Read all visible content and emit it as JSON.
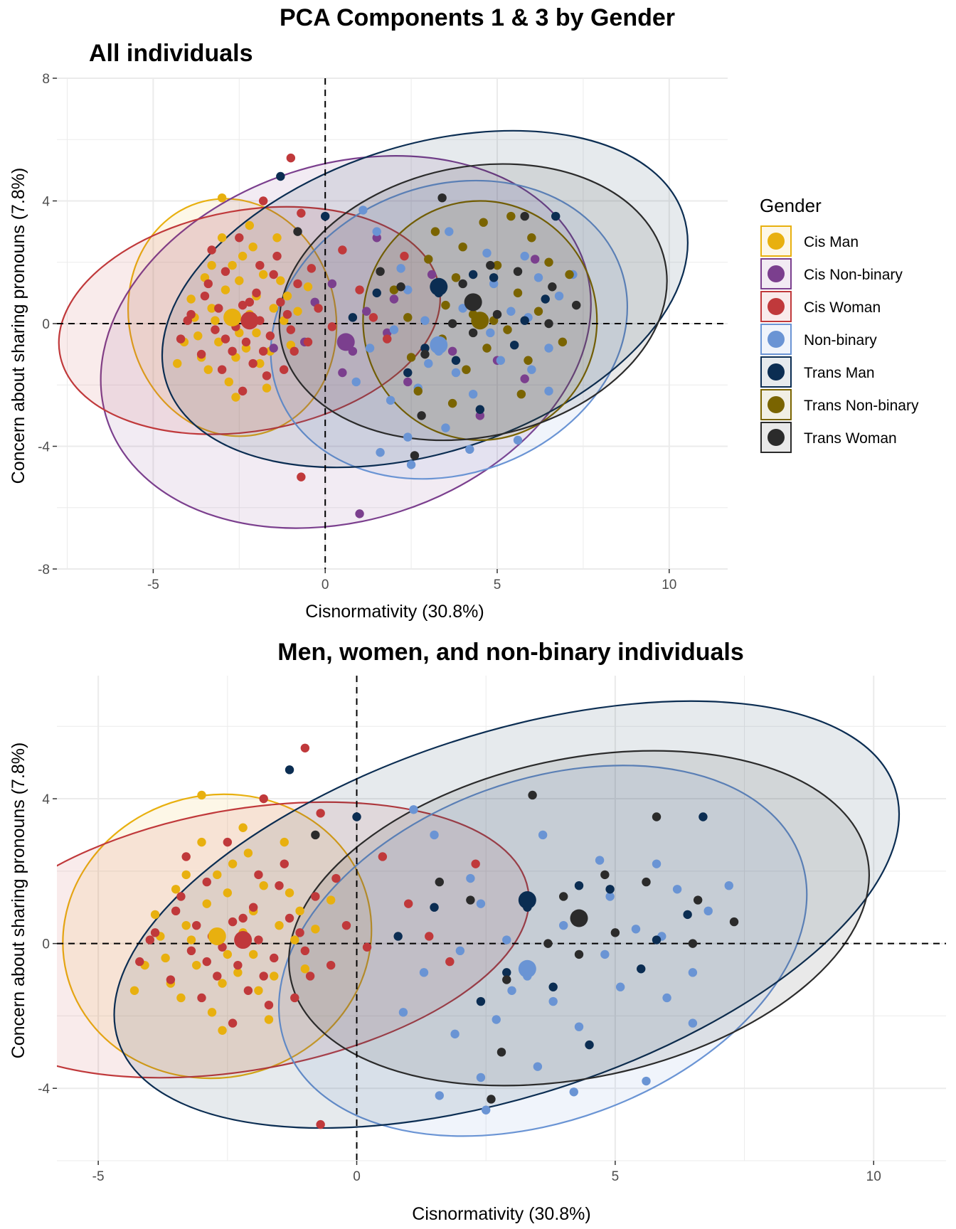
{
  "figure_title": "PCA Components 1 & 3 by Gender",
  "legend": {
    "title": "Gender",
    "placement": "right",
    "entries": [
      {
        "name": "Cis Man",
        "color": "#E8B00F"
      },
      {
        "name": "Cis Non-binary",
        "color": "#7B3F8E"
      },
      {
        "name": "Cis Woman",
        "color": "#C0393B"
      },
      {
        "name": "Non-binary",
        "color": "#6A94D4"
      },
      {
        "name": "Trans Man",
        "color": "#0B2D52"
      },
      {
        "name": "Trans Non-binary",
        "color": "#7A6400"
      },
      {
        "name": "Trans Woman",
        "color": "#2B2B2B"
      }
    ]
  },
  "chart_data": [
    {
      "type": "scatter",
      "title": "All individuals",
      "xlabel": "Cisnormativity (30.8%)",
      "ylabel": "Concern about sharing pronouns (7.8%)",
      "xlim": [
        -7.8,
        11.7
      ],
      "ylim": [
        -8,
        8
      ],
      "x_ticks": [
        -5,
        0,
        5,
        10
      ],
      "y_ticks": [
        -8,
        -4,
        0,
        4,
        8
      ],
      "grid": true,
      "reference_lines": {
        "x": 0,
        "y": 0,
        "style": "dashed"
      },
      "series": [
        {
          "name": "Cis Man",
          "color": "#E8B00F",
          "centroid": [
            -2.7,
            0.2
          ],
          "ellipse": {
            "center": [
              -2.7,
              0.2
            ],
            "rx": 3.0,
            "ry": 3.9,
            "angle": -14
          },
          "points": [
            [
              -3.5,
              1.5
            ],
            [
              -3.3,
              0.5
            ],
            [
              -3.1,
              -0.6
            ],
            [
              -2.9,
              1.1
            ],
            [
              -2.6,
              -1.1
            ],
            [
              -2.4,
              2.2
            ],
            [
              -2.2,
              0.3
            ],
            [
              -2.0,
              -0.3
            ],
            [
              -1.8,
              1.6
            ],
            [
              -1.6,
              -0.9
            ],
            [
              -1.4,
              2.8
            ],
            [
              -1.2,
              0.1
            ],
            [
              -3.7,
              -0.4
            ],
            [
              -3.4,
              -1.5
            ],
            [
              -3.0,
              2.8
            ],
            [
              -2.8,
              -1.9
            ],
            [
              -2.5,
              1.4
            ],
            [
              -2.3,
              -0.8
            ],
            [
              -2.1,
              2.5
            ],
            [
              -1.9,
              -1.3
            ],
            [
              -4.1,
              -0.6
            ],
            [
              -3.9,
              0.8
            ],
            [
              -3.6,
              -1.1
            ],
            [
              -3.2,
              0.1
            ],
            [
              -2.7,
              1.9
            ],
            [
              -2.0,
              0.9
            ],
            [
              -1.5,
              0.5
            ],
            [
              -1.0,
              -0.7
            ],
            [
              -0.5,
              1.2
            ],
            [
              -3.0,
              4.1
            ],
            [
              -2.6,
              -2.4
            ],
            [
              -1.7,
              -2.1
            ],
            [
              -0.8,
              0.4
            ],
            [
              -3.3,
              1.9
            ],
            [
              -2.2,
              3.2
            ],
            [
              -1.3,
              1.4
            ],
            [
              -4.3,
              -1.3
            ],
            [
              -3.8,
              0.2
            ],
            [
              -2.5,
              -0.3
            ],
            [
              -1.1,
              0.9
            ]
          ]
        },
        {
          "name": "Cis Non-binary",
          "color": "#7B3F8E",
          "centroid": [
            0.6,
            -0.6
          ],
          "ellipse": {
            "center": [
              0.6,
              -0.6
            ],
            "rx": 7.3,
            "ry": 5.8,
            "angle": -18
          },
          "points": [
            [
              1.0,
              -6.2
            ],
            [
              1.5,
              2.8
            ],
            [
              0.8,
              -0.9
            ],
            [
              -0.3,
              0.7
            ],
            [
              2.4,
              -1.9
            ],
            [
              0.2,
              1.3
            ],
            [
              1.8,
              -0.3
            ],
            [
              -0.6,
              -0.6
            ],
            [
              4.5,
              -3.0
            ],
            [
              3.1,
              1.6
            ],
            [
              5.0,
              -1.2
            ],
            [
              1.2,
              0.4
            ],
            [
              -1.5,
              -0.8
            ],
            [
              2.0,
              0.8
            ],
            [
              0.5,
              -1.6
            ],
            [
              5.8,
              -1.8
            ],
            [
              6.1,
              2.1
            ],
            [
              3.7,
              -0.9
            ]
          ]
        },
        {
          "name": "Cis Woman",
          "color": "#C0393B",
          "centroid": [
            -2.2,
            0.1
          ],
          "ellipse": {
            "center": [
              -2.2,
              0.1
            ],
            "rx": 5.6,
            "ry": 3.6,
            "angle": -10
          },
          "points": [
            [
              -1.0,
              5.4
            ],
            [
              -0.7,
              -5.0
            ],
            [
              -0.7,
              3.6
            ],
            [
              -1.8,
              4.0
            ],
            [
              -3.5,
              0.9
            ],
            [
              -3.2,
              -0.2
            ],
            [
              -2.9,
              1.7
            ],
            [
              -2.7,
              -0.9
            ],
            [
              -2.4,
              0.6
            ],
            [
              -2.1,
              -1.3
            ],
            [
              -1.9,
              1.9
            ],
            [
              -1.6,
              -0.4
            ],
            [
              -1.3,
              0.7
            ],
            [
              -1.0,
              -0.2
            ],
            [
              -0.8,
              1.3
            ],
            [
              -0.5,
              -0.6
            ],
            [
              -0.2,
              0.5
            ],
            [
              0.2,
              -0.1
            ],
            [
              0.5,
              2.4
            ],
            [
              1.0,
              1.1
            ],
            [
              1.4,
              0.2
            ],
            [
              1.8,
              -0.5
            ],
            [
              2.3,
              2.2
            ],
            [
              -4.2,
              -0.5
            ],
            [
              -3.9,
              0.3
            ],
            [
              -3.6,
              -1.0
            ],
            [
              -3.3,
              2.4
            ],
            [
              -3.0,
              -1.5
            ],
            [
              -2.8,
              0.2
            ],
            [
              -2.5,
              2.8
            ],
            [
              -2.3,
              -0.6
            ],
            [
              -2.0,
              1.0
            ],
            [
              -1.7,
              -1.7
            ],
            [
              -1.4,
              2.2
            ],
            [
              -1.1,
              0.3
            ],
            [
              -0.4,
              1.8
            ],
            [
              -3.1,
              0.5
            ],
            [
              -2.6,
              -0.1
            ],
            [
              -2.2,
              0.7
            ],
            [
              -1.8,
              -0.9
            ],
            [
              -1.5,
              1.6
            ],
            [
              -2.9,
              -0.5
            ],
            [
              -3.4,
              1.3
            ],
            [
              -4.0,
              0.1
            ],
            [
              -0.9,
              -0.9
            ],
            [
              -1.2,
              -1.5
            ],
            [
              -2.4,
              -2.2
            ],
            [
              -1.9,
              0.1
            ]
          ]
        },
        {
          "name": "Non-binary",
          "color": "#6A94D4",
          "centroid": [
            3.3,
            -0.7
          ],
          "ellipse": {
            "center": [
              3.6,
              -0.2
            ],
            "rx": 5.3,
            "ry": 4.7,
            "angle": -20
          },
          "points": [
            [
              1.1,
              3.7
            ],
            [
              1.5,
              3.0
            ],
            [
              2.4,
              -3.7
            ],
            [
              3.6,
              3.0
            ],
            [
              4.7,
              2.3
            ],
            [
              5.8,
              2.2
            ],
            [
              6.2,
              1.5
            ],
            [
              7.2,
              1.6
            ],
            [
              6.5,
              -0.8
            ],
            [
              5.1,
              -1.2
            ],
            [
              4.2,
              -4.1
            ],
            [
              3.5,
              -3.4
            ],
            [
              2.5,
              -4.6
            ],
            [
              1.6,
              -4.2
            ],
            [
              0.9,
              -1.9
            ],
            [
              2.0,
              -0.2
            ],
            [
              2.9,
              0.1
            ],
            [
              3.3,
              -0.9
            ],
            [
              4.0,
              0.5
            ],
            [
              4.8,
              -0.3
            ],
            [
              5.4,
              0.4
            ],
            [
              6.0,
              -1.5
            ],
            [
              6.8,
              0.9
            ],
            [
              3.8,
              -1.6
            ],
            [
              2.4,
              1.1
            ],
            [
              1.9,
              -2.5
            ],
            [
              5.6,
              -3.8
            ],
            [
              4.3,
              -2.3
            ],
            [
              3.0,
              -1.3
            ],
            [
              2.2,
              1.8
            ],
            [
              6.5,
              -2.2
            ],
            [
              4.9,
              1.3
            ],
            [
              1.3,
              -0.8
            ],
            [
              2.7,
              -2.1
            ],
            [
              5.9,
              0.2
            ]
          ]
        },
        {
          "name": "Trans Man",
          "color": "#0B2D52",
          "centroid": [
            3.3,
            1.2
          ],
          "ellipse": {
            "center": [
              2.9,
              0.8
            ],
            "rx": 7.9,
            "ry": 5.0,
            "angle": -18
          },
          "points": [
            [
              -1.3,
              4.8
            ],
            [
              0.0,
              3.5
            ],
            [
              3.3,
              1.0
            ],
            [
              1.5,
              1.0
            ],
            [
              4.5,
              -2.8
            ],
            [
              6.7,
              3.5
            ],
            [
              4.9,
              1.5
            ],
            [
              6.4,
              0.8
            ],
            [
              2.9,
              -0.8
            ],
            [
              3.8,
              -1.2
            ],
            [
              4.3,
              1.6
            ],
            [
              5.8,
              0.1
            ],
            [
              2.4,
              -1.6
            ],
            [
              0.8,
              0.2
            ],
            [
              5.5,
              -0.7
            ]
          ]
        },
        {
          "name": "Trans Non-binary",
          "color": "#7A6400",
          "centroid": [
            4.5,
            0.1
          ],
          "ellipse": {
            "center": [
              4.5,
              0.1
            ],
            "rx": 3.4,
            "ry": 3.9,
            "angle": 0
          },
          "points": [
            [
              2.0,
              1.1
            ],
            [
              2.5,
              -1.1
            ],
            [
              3.0,
              2.1
            ],
            [
              3.4,
              -0.5
            ],
            [
              3.8,
              1.5
            ],
            [
              4.1,
              -1.5
            ],
            [
              4.4,
              0.8
            ],
            [
              4.7,
              -0.8
            ],
            [
              5.0,
              1.9
            ],
            [
              5.3,
              -0.2
            ],
            [
              5.6,
              1.0
            ],
            [
              5.9,
              -1.2
            ],
            [
              6.2,
              0.4
            ],
            [
              6.5,
              2.0
            ],
            [
              6.9,
              -0.6
            ],
            [
              7.1,
              1.6
            ],
            [
              3.2,
              3.0
            ],
            [
              4.6,
              3.3
            ],
            [
              5.4,
              3.5
            ],
            [
              2.7,
              -2.2
            ],
            [
              3.7,
              -2.6
            ],
            [
              4.3,
              0.3
            ],
            [
              4.9,
              0.1
            ],
            [
              3.5,
              0.6
            ],
            [
              6.0,
              2.8
            ],
            [
              2.4,
              0.2
            ],
            [
              5.7,
              -2.3
            ],
            [
              4.0,
              2.5
            ]
          ]
        },
        {
          "name": "Trans Woman",
          "color": "#2B2B2B",
          "centroid": [
            4.3,
            0.7
          ],
          "ellipse": {
            "center": [
              4.3,
              0.7
            ],
            "rx": 5.7,
            "ry": 4.4,
            "angle": -12
          },
          "points": [
            [
              -0.8,
              3.0
            ],
            [
              3.4,
              4.1
            ],
            [
              5.8,
              3.5
            ],
            [
              6.6,
              1.2
            ],
            [
              7.3,
              0.6
            ],
            [
              4.8,
              1.9
            ],
            [
              4.3,
              -0.3
            ],
            [
              3.7,
              0.0
            ],
            [
              2.2,
              1.2
            ],
            [
              2.8,
              -3.0
            ],
            [
              2.6,
              -4.3
            ],
            [
              4.0,
              1.3
            ],
            [
              5.6,
              1.7
            ],
            [
              6.5,
              0.0
            ],
            [
              1.6,
              1.7
            ],
            [
              2.9,
              -1.0
            ],
            [
              5.0,
              0.3
            ]
          ]
        }
      ]
    },
    {
      "type": "scatter",
      "title": "Men, women, and non-binary individuals",
      "xlabel": "Cisnormativity (30.8%)",
      "ylabel": "Concern about sharing pronouns (7.8%)",
      "xlim": [
        -5.8,
        11.4
      ],
      "ylim": [
        -6.0,
        7.4
      ],
      "x_ticks": [
        -5,
        0,
        5,
        10
      ],
      "y_ticks": [
        -4,
        0,
        4
      ],
      "grid": true,
      "reference_lines": {
        "x": 0,
        "y": 0,
        "style": "dashed"
      },
      "series": [
        {
          "name": "Cis Man",
          "series_ref": 0
        },
        {
          "name": "Cis Woman",
          "series_ref": 2
        },
        {
          "name": "Non-binary",
          "series_ref": 3
        },
        {
          "name": "Trans Man",
          "series_ref": 4
        },
        {
          "name": "Trans Woman",
          "series_ref": 6
        }
      ]
    }
  ]
}
